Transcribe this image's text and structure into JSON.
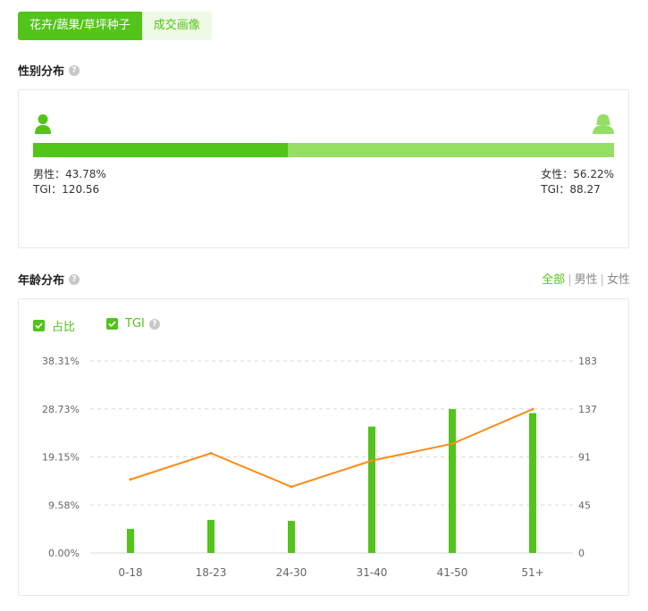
{
  "tabs": {
    "category": "花卉/蔬果/草坪种子",
    "portrait": "成交画像"
  },
  "gender": {
    "title": "性别分布",
    "help": "?",
    "male_pct": 43.78,
    "male_label": "男性：43.78%",
    "male_tgi": "TGI：120.56",
    "female_label": "女性：56.22%",
    "female_tgi": "TGI：88.27",
    "male_color": "#52c41a",
    "female_color": "#95de64"
  },
  "age": {
    "title": "年龄分布",
    "help": "?",
    "filter_all": "全部",
    "filter_male": "男性",
    "filter_female": "女性",
    "sep": "|",
    "legend_share": "占比",
    "legend_tgi": "TGI"
  },
  "chart_data": {
    "type": "bar",
    "categories": [
      "0-18",
      "18-23",
      "24-30",
      "31-40",
      "41-50",
      "51+"
    ],
    "series": [
      {
        "name": "占比",
        "type": "bar",
        "axis": "left",
        "color": "#52c41a",
        "values": [
          4.8,
          6.6,
          6.4,
          25.2,
          28.7,
          27.9
        ]
      },
      {
        "name": "TGI",
        "type": "line",
        "axis": "right",
        "color": "#fa8c16",
        "values": [
          70,
          95,
          63,
          88,
          104,
          137
        ]
      }
    ],
    "left_axis": {
      "ticks": [
        "0.00%",
        "9.58%",
        "19.15%",
        "28.73%",
        "38.31%"
      ],
      "ylim": [
        0,
        38.31
      ]
    },
    "right_axis": {
      "ticks": [
        "0",
        "45",
        "91",
        "137",
        "183"
      ],
      "ylim": [
        0,
        183
      ]
    },
    "grid": true
  }
}
